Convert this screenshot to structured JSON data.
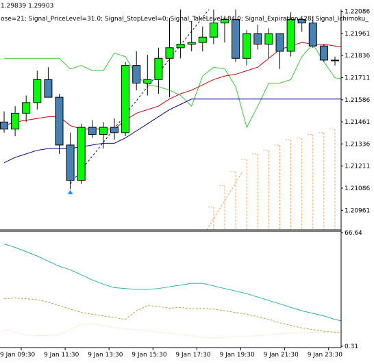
{
  "header": {
    "prices": "1.29839 1.29903",
    "params": "ose=21; Signal_PriceLevel=31.0; Signal_StopLevel=0; Signal_TakeLevel=84.0; Signal_Expiration=28; Signal_Ichimoku_"
  },
  "colors": {
    "bull": "#00ff00",
    "bear": "#4682b4",
    "candle_outline": "#000000",
    "ma_red": "#cc0000",
    "ma_navy": "#000099",
    "envelope": "#32cd32",
    "cloud": "#f4a460",
    "arrow_up": "#1e90ff",
    "arrow_down": "#ff0000",
    "osc_main": "#20b2aa",
    "osc_signal": "#b8a040",
    "osc_third": "#f5deb3"
  },
  "chart_data": [
    {
      "type": "candlestick",
      "title": "",
      "ylim": [
        1.2085,
        1.2215
      ],
      "y_ticks": [
        "1.22086",
        "1.21961",
        "1.21836",
        "1.21711",
        "1.21586",
        "1.21461",
        "1.21336",
        "1.21211",
        "1.21086",
        "1.20961"
      ],
      "x_ticks": [
        "9 Jan 09:30",
        "9 Jan 11:30",
        "9 Jan 13:30",
        "9 Jan 15:30",
        "9 Jan 17:30",
        "9 Jan 19:30",
        "9 Jan 21:30",
        "9 Jan 23:30"
      ],
      "candles": [
        {
          "o": 1.2146,
          "h": 1.2152,
          "l": 1.214,
          "c": 1.2142
        },
        {
          "o": 1.2142,
          "h": 1.2155,
          "l": 1.2138,
          "c": 1.2151
        },
        {
          "o": 1.2151,
          "h": 1.2161,
          "l": 1.2146,
          "c": 1.2157
        },
        {
          "o": 1.2157,
          "h": 1.2175,
          "l": 1.2153,
          "c": 1.217
        },
        {
          "o": 1.217,
          "h": 1.2177,
          "l": 1.216,
          "c": 1.216
        },
        {
          "o": 1.216,
          "h": 1.2162,
          "l": 1.2128,
          "c": 1.2133
        },
        {
          "o": 1.2133,
          "h": 1.214,
          "l": 1.2108,
          "c": 1.2113
        },
        {
          "o": 1.2113,
          "h": 1.2145,
          "l": 1.2111,
          "c": 1.2143
        },
        {
          "o": 1.2143,
          "h": 1.2147,
          "l": 1.2137,
          "c": 1.2139
        },
        {
          "o": 1.2139,
          "h": 1.2146,
          "l": 1.2131,
          "c": 1.2143
        },
        {
          "o": 1.2143,
          "h": 1.2148,
          "l": 1.2136,
          "c": 1.214
        },
        {
          "o": 1.214,
          "h": 1.218,
          "l": 1.2138,
          "c": 1.2178
        },
        {
          "o": 1.2178,
          "h": 1.2186,
          "l": 1.2164,
          "c": 1.2168
        },
        {
          "o": 1.2168,
          "h": 1.2184,
          "l": 1.2161,
          "c": 1.217
        },
        {
          "o": 1.217,
          "h": 1.2188,
          "l": 1.2162,
          "c": 1.2182
        },
        {
          "o": 1.2182,
          "h": 1.2205,
          "l": 1.216,
          "c": 1.2188
        },
        {
          "o": 1.2188,
          "h": 1.221,
          "l": 1.2182,
          "c": 1.219
        },
        {
          "o": 1.219,
          "h": 1.2203,
          "l": 1.2186,
          "c": 1.2191
        },
        {
          "o": 1.2191,
          "h": 1.22,
          "l": 1.2186,
          "c": 1.2194
        },
        {
          "o": 1.2194,
          "h": 1.2212,
          "l": 1.219,
          "c": 1.2202
        },
        {
          "o": 1.2202,
          "h": 1.2206,
          "l": 1.2191,
          "c": 1.2204
        },
        {
          "o": 1.2204,
          "h": 1.2212,
          "l": 1.218,
          "c": 1.2182
        },
        {
          "o": 1.2182,
          "h": 1.2198,
          "l": 1.2178,
          "c": 1.2196
        },
        {
          "o": 1.2196,
          "h": 1.2201,
          "l": 1.2187,
          "c": 1.219
        },
        {
          "o": 1.219,
          "h": 1.2199,
          "l": 1.2182,
          "c": 1.2196
        },
        {
          "o": 1.2196,
          "h": 1.2196,
          "l": 1.2176,
          "c": 1.2186
        },
        {
          "o": 1.2186,
          "h": 1.2208,
          "l": 1.2183,
          "c": 1.2204
        },
        {
          "o": 1.2204,
          "h": 1.2206,
          "l": 1.2197,
          "c": 1.2202
        },
        {
          "o": 1.2202,
          "h": 1.2206,
          "l": 1.2188,
          "c": 1.2189
        },
        {
          "o": 1.2189,
          "h": 1.219,
          "l": 1.218,
          "c": 1.2181
        },
        {
          "o": 1.2181,
          "h": 1.2183,
          "l": 1.2178,
          "c": 1.2181
        },
        {
          "o": 1.2181,
          "h": 1.2183,
          "l": 1.2178,
          "c": 1.218
        },
        {
          "o": 1.218,
          "h": 1.2188,
          "l": 1.2177,
          "c": 1.2184
        },
        {
          "o": 1.2184,
          "h": 1.2187,
          "l": 1.2181,
          "c": 1.2183
        },
        {
          "o": 1.2183,
          "h": 1.2187,
          "l": 1.2177,
          "c": 1.218
        }
      ],
      "ma_red": [
        1.2144,
        1.2146,
        1.2147,
        1.2148,
        1.2149,
        1.2149,
        1.2144,
        1.2142,
        1.2142,
        1.2142,
        1.2142,
        1.2147,
        1.2151,
        1.2153,
        1.2155,
        1.2159,
        1.2162,
        1.2164,
        1.2167,
        1.217,
        1.2172,
        1.2173,
        1.2175,
        1.2177,
        1.2182,
        1.2187,
        1.2189,
        1.2191,
        1.219,
        1.219,
        1.2189,
        1.2188,
        1.2188,
        1.2188,
        1.2189
      ],
      "ma_navy": [
        1.2123,
        1.2126,
        1.2128,
        1.213,
        1.2131,
        1.2131,
        1.2131,
        1.2132,
        1.2133,
        1.2134,
        1.2134,
        1.2137,
        1.2141,
        1.2145,
        1.2149,
        1.2153,
        1.2156,
        1.2159,
        1.2159,
        1.2159,
        1.2159,
        1.2159,
        1.2159,
        1.2159,
        1.2159,
        1.2159,
        1.2159,
        1.2159,
        1.2159,
        1.2159,
        1.2159,
        1.2159,
        1.2159,
        1.2159,
        1.2159
      ],
      "envelope": [
        1.2182,
        1.2182,
        1.2182,
        1.2182,
        1.2182,
        1.2182,
        1.2176,
        1.2178,
        1.2175,
        1.2175,
        1.2185,
        1.2183,
        1.2172,
        1.2167,
        1.2166,
        1.2164,
        1.2161,
        1.2155,
        1.2172,
        1.2177,
        1.2176,
        1.2166,
        1.2143,
        1.2155,
        1.2168,
        1.2168,
        1.217,
        1.2183,
        1.219,
        1.218,
        1.2171,
        1.217,
        1.217,
        1.2155,
        1.2145
      ],
      "cloud_top": [
        null,
        null,
        null,
        null,
        null,
        null,
        null,
        null,
        null,
        null,
        null,
        null,
        null,
        null,
        null,
        null,
        null,
        null,
        null,
        1.2098,
        1.211,
        1.2118,
        1.2125,
        1.2128,
        1.213,
        1.2133,
        1.2136,
        1.2137,
        1.2139,
        1.214,
        1.2142,
        1.2144,
        1.2145,
        1.2146,
        1.2146
      ],
      "cloud_bottom": [
        null,
        null,
        null,
        null,
        null,
        null,
        null,
        null,
        null,
        null,
        null,
        null,
        null,
        null,
        null,
        null,
        null,
        null,
        null,
        1.2092,
        1.2092,
        1.2092,
        1.2092,
        1.2092,
        1.2092,
        1.2092,
        1.2092,
        1.2092,
        1.2092,
        1.2092,
        1.2092,
        1.2092,
        1.2092,
        1.2092,
        1.2092
      ],
      "arrows": [
        {
          "index": 6,
          "price": 1.2106,
          "dir": "up"
        },
        {
          "index": 19,
          "price": 1.2215,
          "dir": "down"
        }
      ],
      "trend_line": [
        {
          "index": 6,
          "price": 1.2111
        },
        {
          "index": 19,
          "price": 1.2213
        }
      ]
    },
    {
      "type": "line",
      "title": "",
      "ylim": [
        0.31,
        66.64
      ],
      "y_ticks": [
        "66.64",
        "0.31"
      ],
      "series": [
        {
          "values": [
            60.0,
            58.0,
            55.5,
            53.0,
            50.0,
            47.0,
            45.0,
            42.0,
            39.0,
            36.5,
            34.5,
            34.0,
            33.5,
            33.5,
            34.0,
            35.0,
            36.0,
            37.0,
            37.0,
            35.5,
            34.0,
            32.5,
            31.0,
            29.0,
            27.0,
            25.0,
            23.0,
            21.0,
            19.5,
            18.0,
            16.0,
            14.5,
            13.0,
            12.0,
            11.5
          ]
        },
        {
          "values": [
            28.0,
            28.5,
            28.0,
            27.5,
            26.0,
            24.0,
            22.0,
            20.0,
            19.0,
            18.0,
            17.0,
            16.0,
            21.0,
            24.0,
            23.5,
            22.5,
            23.0,
            22.0,
            22.5,
            22.0,
            21.0,
            20.0,
            19.0,
            17.5,
            16.0,
            14.0,
            12.5,
            11.0,
            10.0,
            9.0,
            8.5,
            8.0,
            7.5,
            8.0,
            9.0
          ]
        },
        {
          "values": [
            10.0,
            8.5,
            7.0,
            6.5,
            6.5,
            7.0,
            10.0,
            13.0,
            13.5,
            12.5,
            11.0,
            10.5,
            10.0,
            9.5,
            8.5,
            8.0,
            7.0,
            6.5,
            5.5,
            5.0,
            5.5,
            6.0,
            6.0,
            6.5,
            7.0,
            7.5,
            8.0,
            8.0,
            8.5,
            8.5,
            9.0,
            9.0,
            9.5,
            9.5,
            10.0
          ]
        }
      ]
    }
  ]
}
